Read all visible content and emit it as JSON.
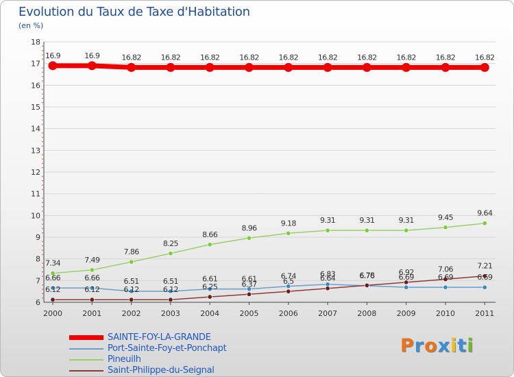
{
  "title": "Evolution du Taux de Taxe d'Habitation",
  "subtitle": "(en %)",
  "logo": {
    "letters": [
      "P",
      "r",
      "o",
      "x",
      "i",
      "t",
      "i"
    ],
    "colors": [
      "#e8731b",
      "#3a8fd6",
      "#e8731b",
      "#3a8fd6",
      "#e8c21b",
      "#3a8fd6",
      "#6fba2b"
    ]
  },
  "chart_data": {
    "type": "line",
    "title": "Evolution du Taux de Taxe d'Habitation",
    "ylabel": "(en %)",
    "xlabel": "",
    "ylim": [
      6,
      18
    ],
    "yticks": [
      "6",
      "7",
      "8",
      "9",
      "10",
      "11",
      "12",
      "13",
      "14",
      "15",
      "16",
      "17",
      "18"
    ],
    "x": [
      "2000",
      "2001",
      "2002",
      "2003",
      "2004",
      "2005",
      "2006",
      "2007",
      "2008",
      "2009",
      "2010",
      "2011"
    ],
    "series": [
      {
        "name": "SAINTE-FOY-LA-GRANDE",
        "color": "#ee0000",
        "width": 7,
        "values": [
          16.9,
          16.9,
          16.82,
          16.82,
          16.82,
          16.82,
          16.82,
          16.82,
          16.82,
          16.82,
          16.82,
          16.82
        ],
        "labels": [
          "16.9",
          "16.9",
          "16.82",
          "16.82",
          "16.82",
          "16.82",
          "16.82",
          "16.82",
          "16.82",
          "16.82",
          "16.82",
          "16.82"
        ]
      },
      {
        "name": "Port-Sainte-Foy-et-Ponchapt",
        "color": "#6a9ec9",
        "marker": "#3b88c8",
        "width": 1.5,
        "values": [
          6.66,
          6.66,
          6.51,
          6.51,
          6.61,
          6.61,
          6.74,
          6.83,
          6.76,
          6.69,
          6.69,
          6.69
        ],
        "labels": [
          "6.66",
          "6.66",
          "6.51",
          "6.51",
          "6.61",
          "6.61",
          "6.74",
          "6.83",
          "6.76",
          "6.69",
          "6.69",
          "6.69"
        ]
      },
      {
        "name": "Pineuilh",
        "color": "#99d066",
        "marker": "#7ccd3c",
        "width": 1.5,
        "values": [
          7.34,
          7.49,
          7.86,
          8.25,
          8.66,
          8.96,
          9.18,
          9.31,
          9.31,
          9.31,
          9.45,
          9.64
        ],
        "labels": [
          "7.34",
          "7.49",
          "7.86",
          "8.25",
          "8.66",
          "8.96",
          "9.18",
          "9.31",
          "9.31",
          "9.31",
          "9.45",
          "9.64"
        ]
      },
      {
        "name": "Saint-Philippe-du-Seignal",
        "color": "#8b3a3a",
        "marker": "#6b1e1e",
        "width": 1.5,
        "values": [
          6.12,
          6.12,
          6.12,
          6.12,
          6.25,
          6.37,
          6.5,
          6.64,
          6.78,
          6.92,
          7.06,
          7.21
        ],
        "labels": [
          "6.12",
          "6.12",
          "6.12",
          "6.12",
          "6.25",
          "6.37",
          "6.5",
          "6.64",
          "6.78",
          "6.92",
          "7.06",
          "7.21"
        ]
      }
    ]
  }
}
